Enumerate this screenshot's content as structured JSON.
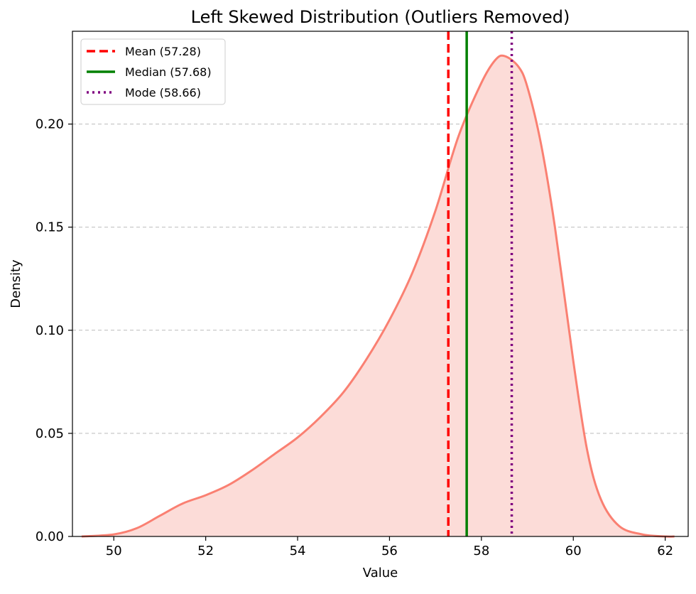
{
  "chart_data": {
    "type": "area",
    "title": "Left Skewed Distribution (Outliers Removed)",
    "xlabel": "Value",
    "ylabel": "Density",
    "xlim": [
      49.1,
      62.5
    ],
    "ylim": [
      0.0,
      0.245
    ],
    "xticks": [
      50,
      52,
      54,
      56,
      58,
      60,
      62
    ],
    "yticks": [
      0.0,
      0.05,
      0.1,
      0.15,
      0.2
    ],
    "xtick_labels": [
      "50",
      "52",
      "54",
      "56",
      "58",
      "60",
      "62"
    ],
    "ytick_labels": [
      "0.00",
      "0.05",
      "0.10",
      "0.15",
      "0.20"
    ],
    "grid": {
      "axis": "y",
      "style": "dashed",
      "color": "#bbbbbb"
    },
    "legend_position": "top-left",
    "series": [
      {
        "kind": "kde",
        "line_color": "#fa8072",
        "fill_color": "#fcdcd8",
        "x": [
          49.3,
          50.0,
          50.5,
          51.0,
          51.5,
          52.0,
          52.5,
          53.0,
          53.5,
          54.0,
          54.5,
          55.0,
          55.5,
          56.0,
          56.5,
          57.0,
          57.5,
          58.0,
          58.3,
          58.5,
          58.8,
          59.0,
          59.3,
          59.6,
          60.0,
          60.3,
          60.6,
          61.0,
          61.5,
          62.0,
          62.2
        ],
        "y": [
          0.0,
          0.001,
          0.004,
          0.01,
          0.016,
          0.02,
          0.025,
          0.032,
          0.04,
          0.048,
          0.058,
          0.07,
          0.086,
          0.105,
          0.128,
          0.158,
          0.194,
          0.22,
          0.231,
          0.233,
          0.228,
          0.218,
          0.19,
          0.15,
          0.085,
          0.042,
          0.018,
          0.005,
          0.001,
          0.0,
          0.0
        ]
      }
    ],
    "vlines": [
      {
        "name": "Mean (57.28)",
        "x": 57.28,
        "color": "#ff0000",
        "style": "dashed"
      },
      {
        "name": "Median (57.68)",
        "x": 57.68,
        "color": "#008000",
        "style": "solid"
      },
      {
        "name": "Mode (58.66)",
        "x": 58.66,
        "color": "#800080",
        "style": "dotted"
      }
    ]
  }
}
